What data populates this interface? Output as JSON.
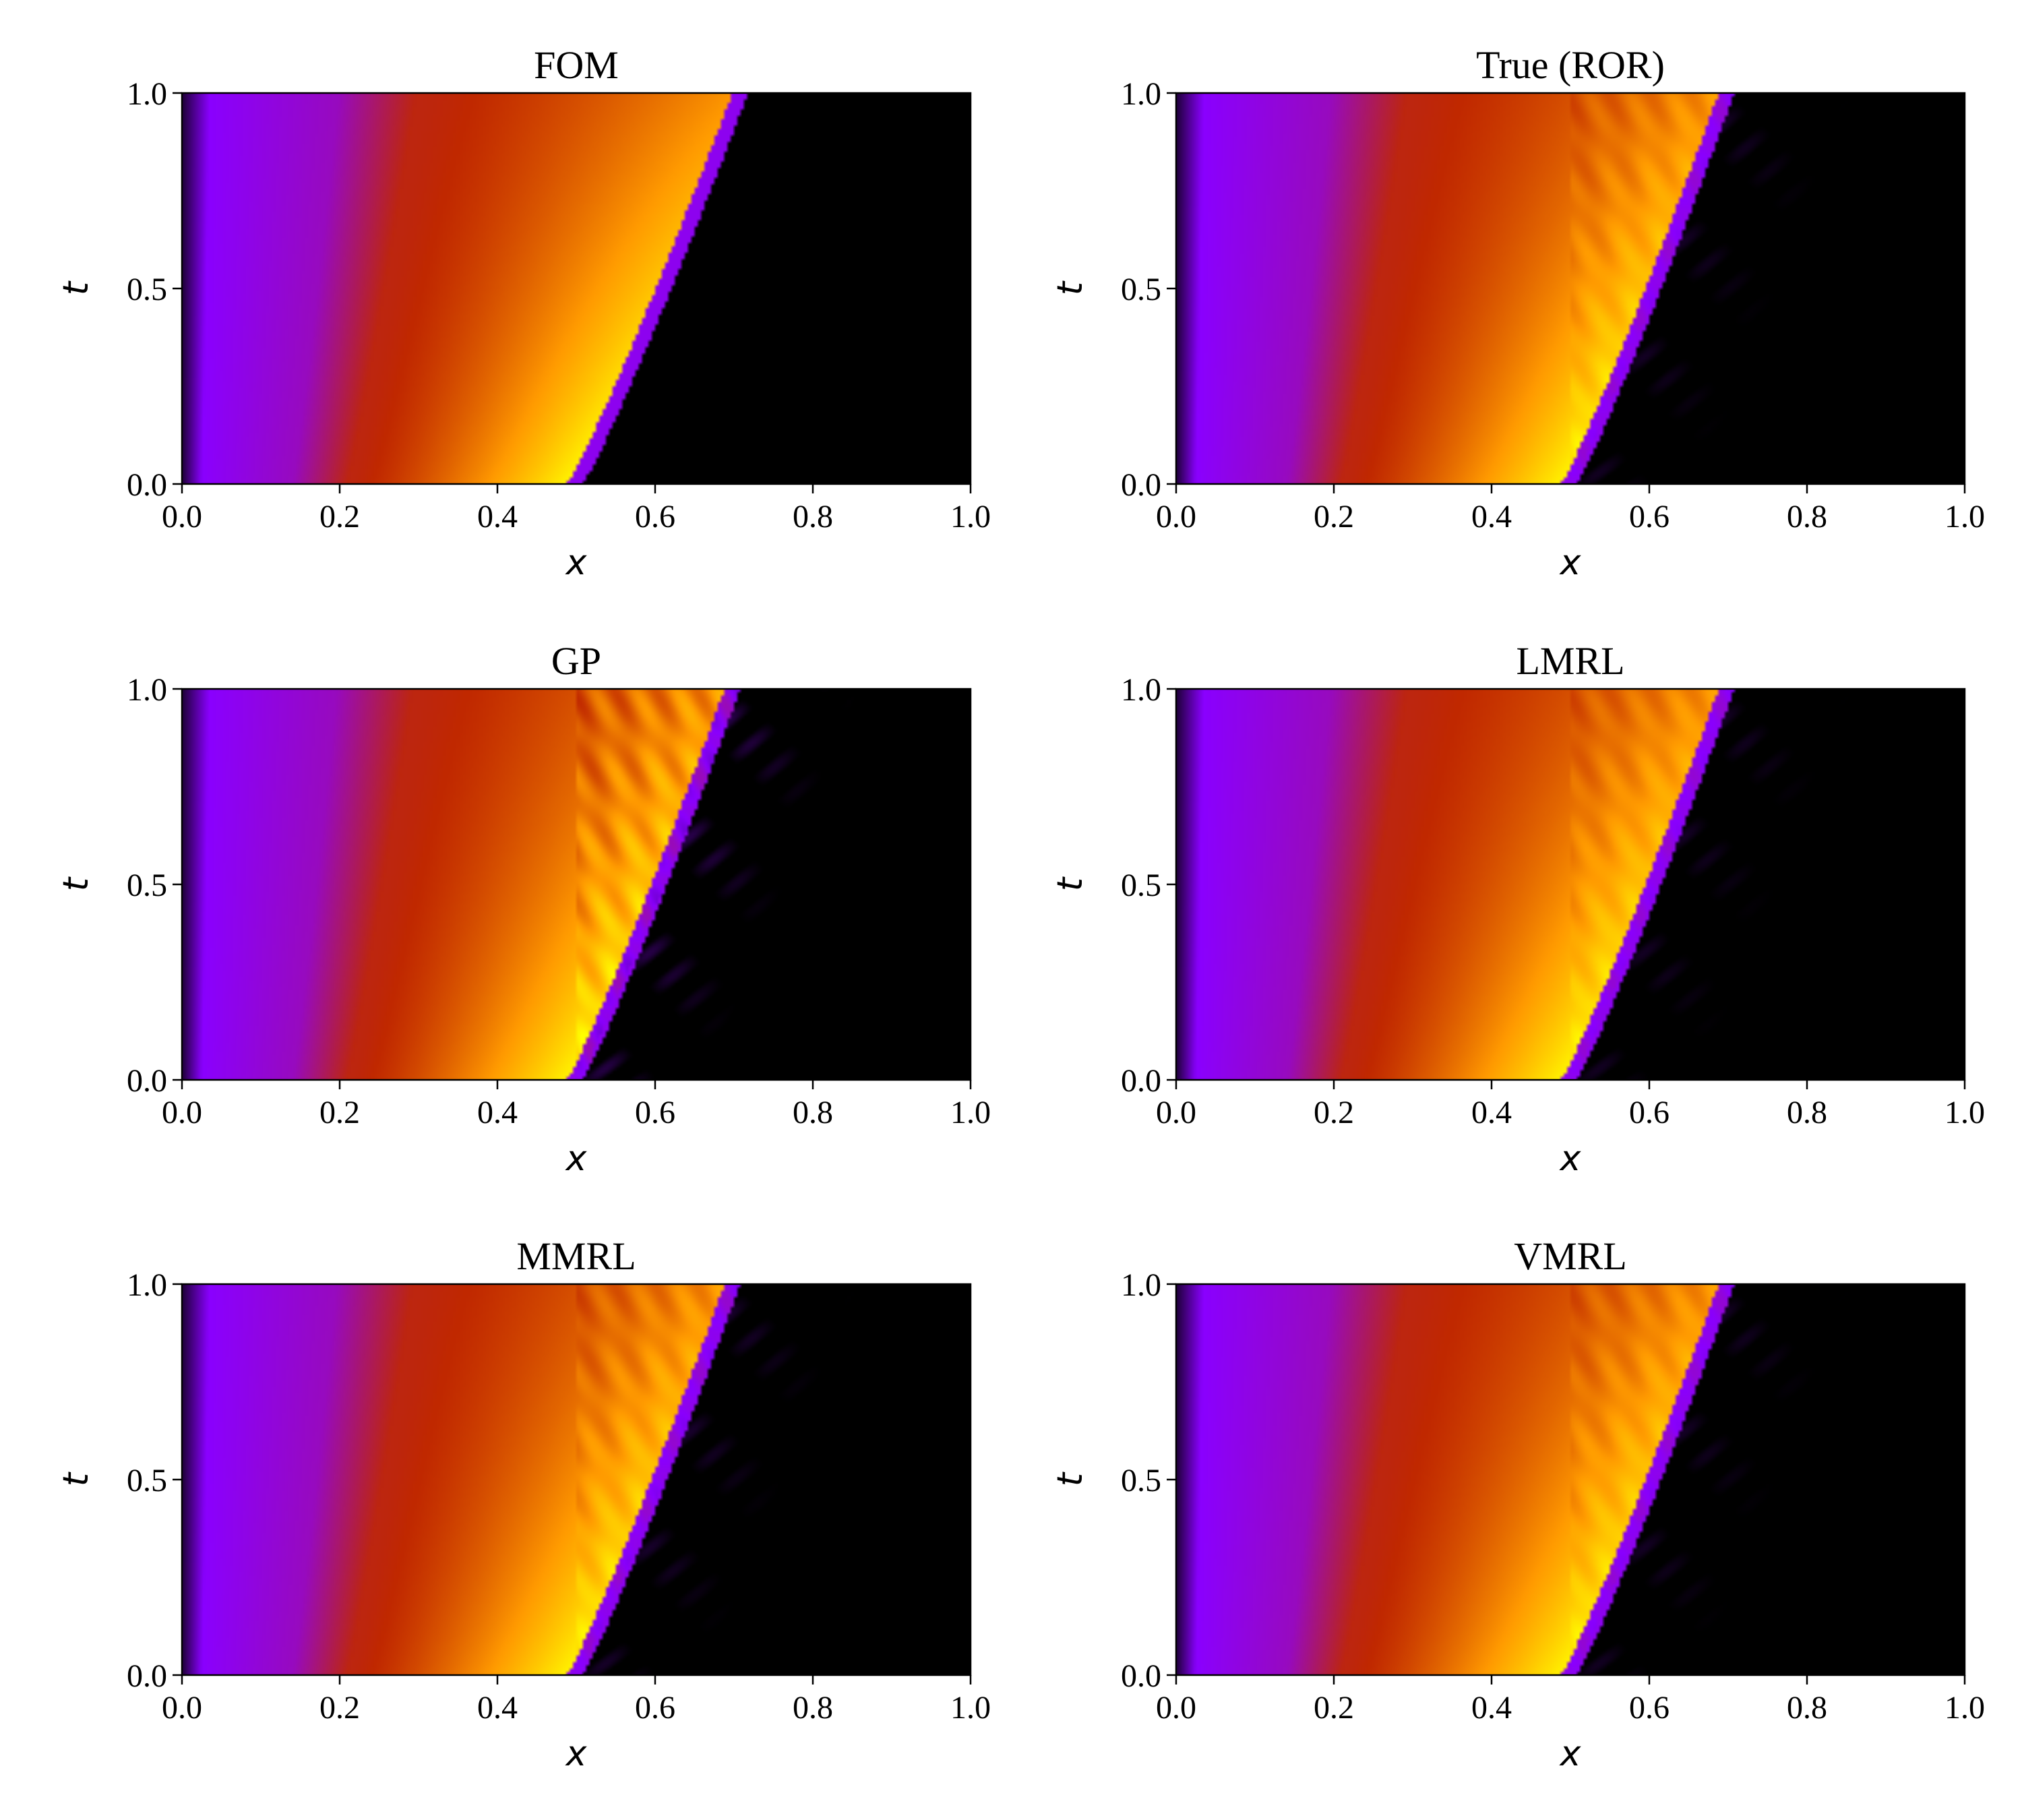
{
  "figure": {
    "colormap": "gnuplot",
    "colormap_stops": [
      "#000000",
      "#8a00ff",
      "#c02800",
      "#ff9a00",
      "#ffff00"
    ]
  },
  "chart_data": [
    {
      "type": "heatmap",
      "title": "FOM",
      "xlabel": "x",
      "ylabel": "t",
      "xlim": [
        0,
        1
      ],
      "ylim": [
        0,
        1
      ],
      "xticks": [
        "0.0",
        "0.2",
        "0.4",
        "0.6",
        "0.8",
        "1.0"
      ],
      "yticks": [
        "0.0",
        "0.5",
        "1.0"
      ],
      "shock_start_x": 0.5,
      "shock_end_x": 0.71,
      "artifact_level": 0.0
    },
    {
      "type": "heatmap",
      "title": "True (ROR)",
      "xlabel": "x",
      "ylabel": "t",
      "xlim": [
        0,
        1
      ],
      "ylim": [
        0,
        1
      ],
      "xticks": [
        "0.0",
        "0.2",
        "0.4",
        "0.6",
        "0.8",
        "1.0"
      ],
      "yticks": [
        "0.0",
        "0.5",
        "1.0"
      ],
      "shock_start_x": 0.5,
      "shock_end_x": 0.7,
      "artifact_level": 0.5
    },
    {
      "type": "heatmap",
      "title": "GP",
      "xlabel": "x",
      "ylabel": "t",
      "xlim": [
        0,
        1
      ],
      "ylim": [
        0,
        1
      ],
      "xticks": [
        "0.0",
        "0.2",
        "0.4",
        "0.6",
        "0.8",
        "1.0"
      ],
      "yticks": [
        "0.0",
        "0.5",
        "1.0"
      ],
      "shock_start_x": 0.5,
      "shock_end_x": 0.7,
      "artifact_level": 1.0
    },
    {
      "type": "heatmap",
      "title": "LMRL",
      "xlabel": "x",
      "ylabel": "t",
      "xlim": [
        0,
        1
      ],
      "ylim": [
        0,
        1
      ],
      "xticks": [
        "0.0",
        "0.2",
        "0.4",
        "0.6",
        "0.8",
        "1.0"
      ],
      "yticks": [
        "0.0",
        "0.5",
        "1.0"
      ],
      "shock_start_x": 0.5,
      "shock_end_x": 0.7,
      "artifact_level": 0.5
    },
    {
      "type": "heatmap",
      "title": "MMRL",
      "xlabel": "x",
      "ylabel": "t",
      "xlim": [
        0,
        1
      ],
      "ylim": [
        0,
        1
      ],
      "xticks": [
        "0.0",
        "0.2",
        "0.4",
        "0.6",
        "0.8",
        "1.0"
      ],
      "yticks": [
        "0.0",
        "0.5",
        "1.0"
      ],
      "shock_start_x": 0.5,
      "shock_end_x": 0.7,
      "artifact_level": 0.6
    },
    {
      "type": "heatmap",
      "title": "VMRL",
      "xlabel": "x",
      "ylabel": "t",
      "xlim": [
        0,
        1
      ],
      "ylim": [
        0,
        1
      ],
      "xticks": [
        "0.0",
        "0.2",
        "0.4",
        "0.6",
        "0.8",
        "1.0"
      ],
      "yticks": [
        "0.0",
        "0.5",
        "1.0"
      ],
      "shock_start_x": 0.5,
      "shock_end_x": 0.7,
      "artifact_level": 0.5
    }
  ]
}
